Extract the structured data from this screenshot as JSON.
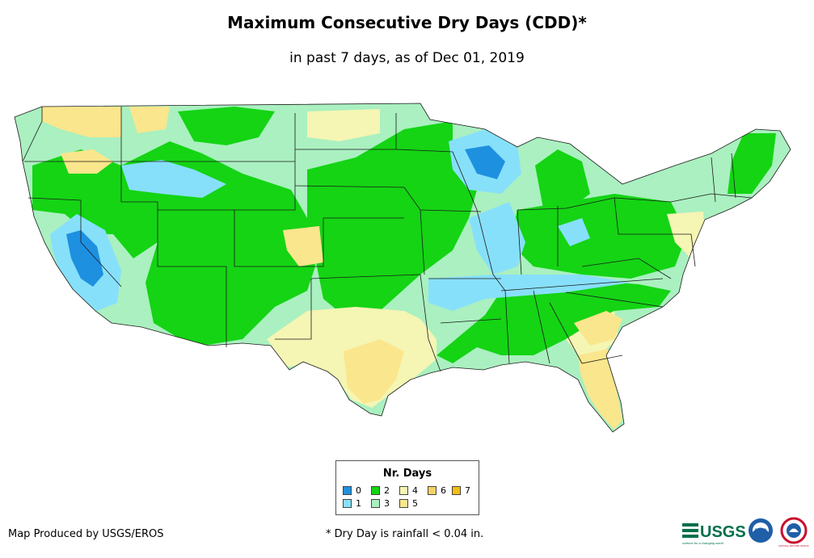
{
  "header": {
    "title": "Maximum Consecutive Dry Days (CDD)*",
    "subtitle": "in past 7 days, as of Dec 01, 2019"
  },
  "legend": {
    "title": "Nr. Days",
    "items": [
      {
        "label": "0",
        "color": "#1E90E0"
      },
      {
        "label": "1",
        "color": "#87E0FA"
      },
      {
        "label": "2",
        "color": "#14D414"
      },
      {
        "label": "3",
        "color": "#AAF0C0"
      },
      {
        "label": "4",
        "color": "#F5F5B4"
      },
      {
        "label": "5",
        "color": "#FAE68C"
      },
      {
        "label": "6",
        "color": "#F5D264"
      },
      {
        "label": "7",
        "color": "#F5BE14"
      }
    ]
  },
  "footer": {
    "credit": "Map Produced by USGS/EROS",
    "footnote": "* Dry Day is rainfall < 0.04 in."
  },
  "logos": {
    "usgs": "USGS",
    "usgs_tagline": "science for a changing world",
    "noaa": "noaa",
    "nws": "NATIONAL WEATHER SERVICE"
  }
}
